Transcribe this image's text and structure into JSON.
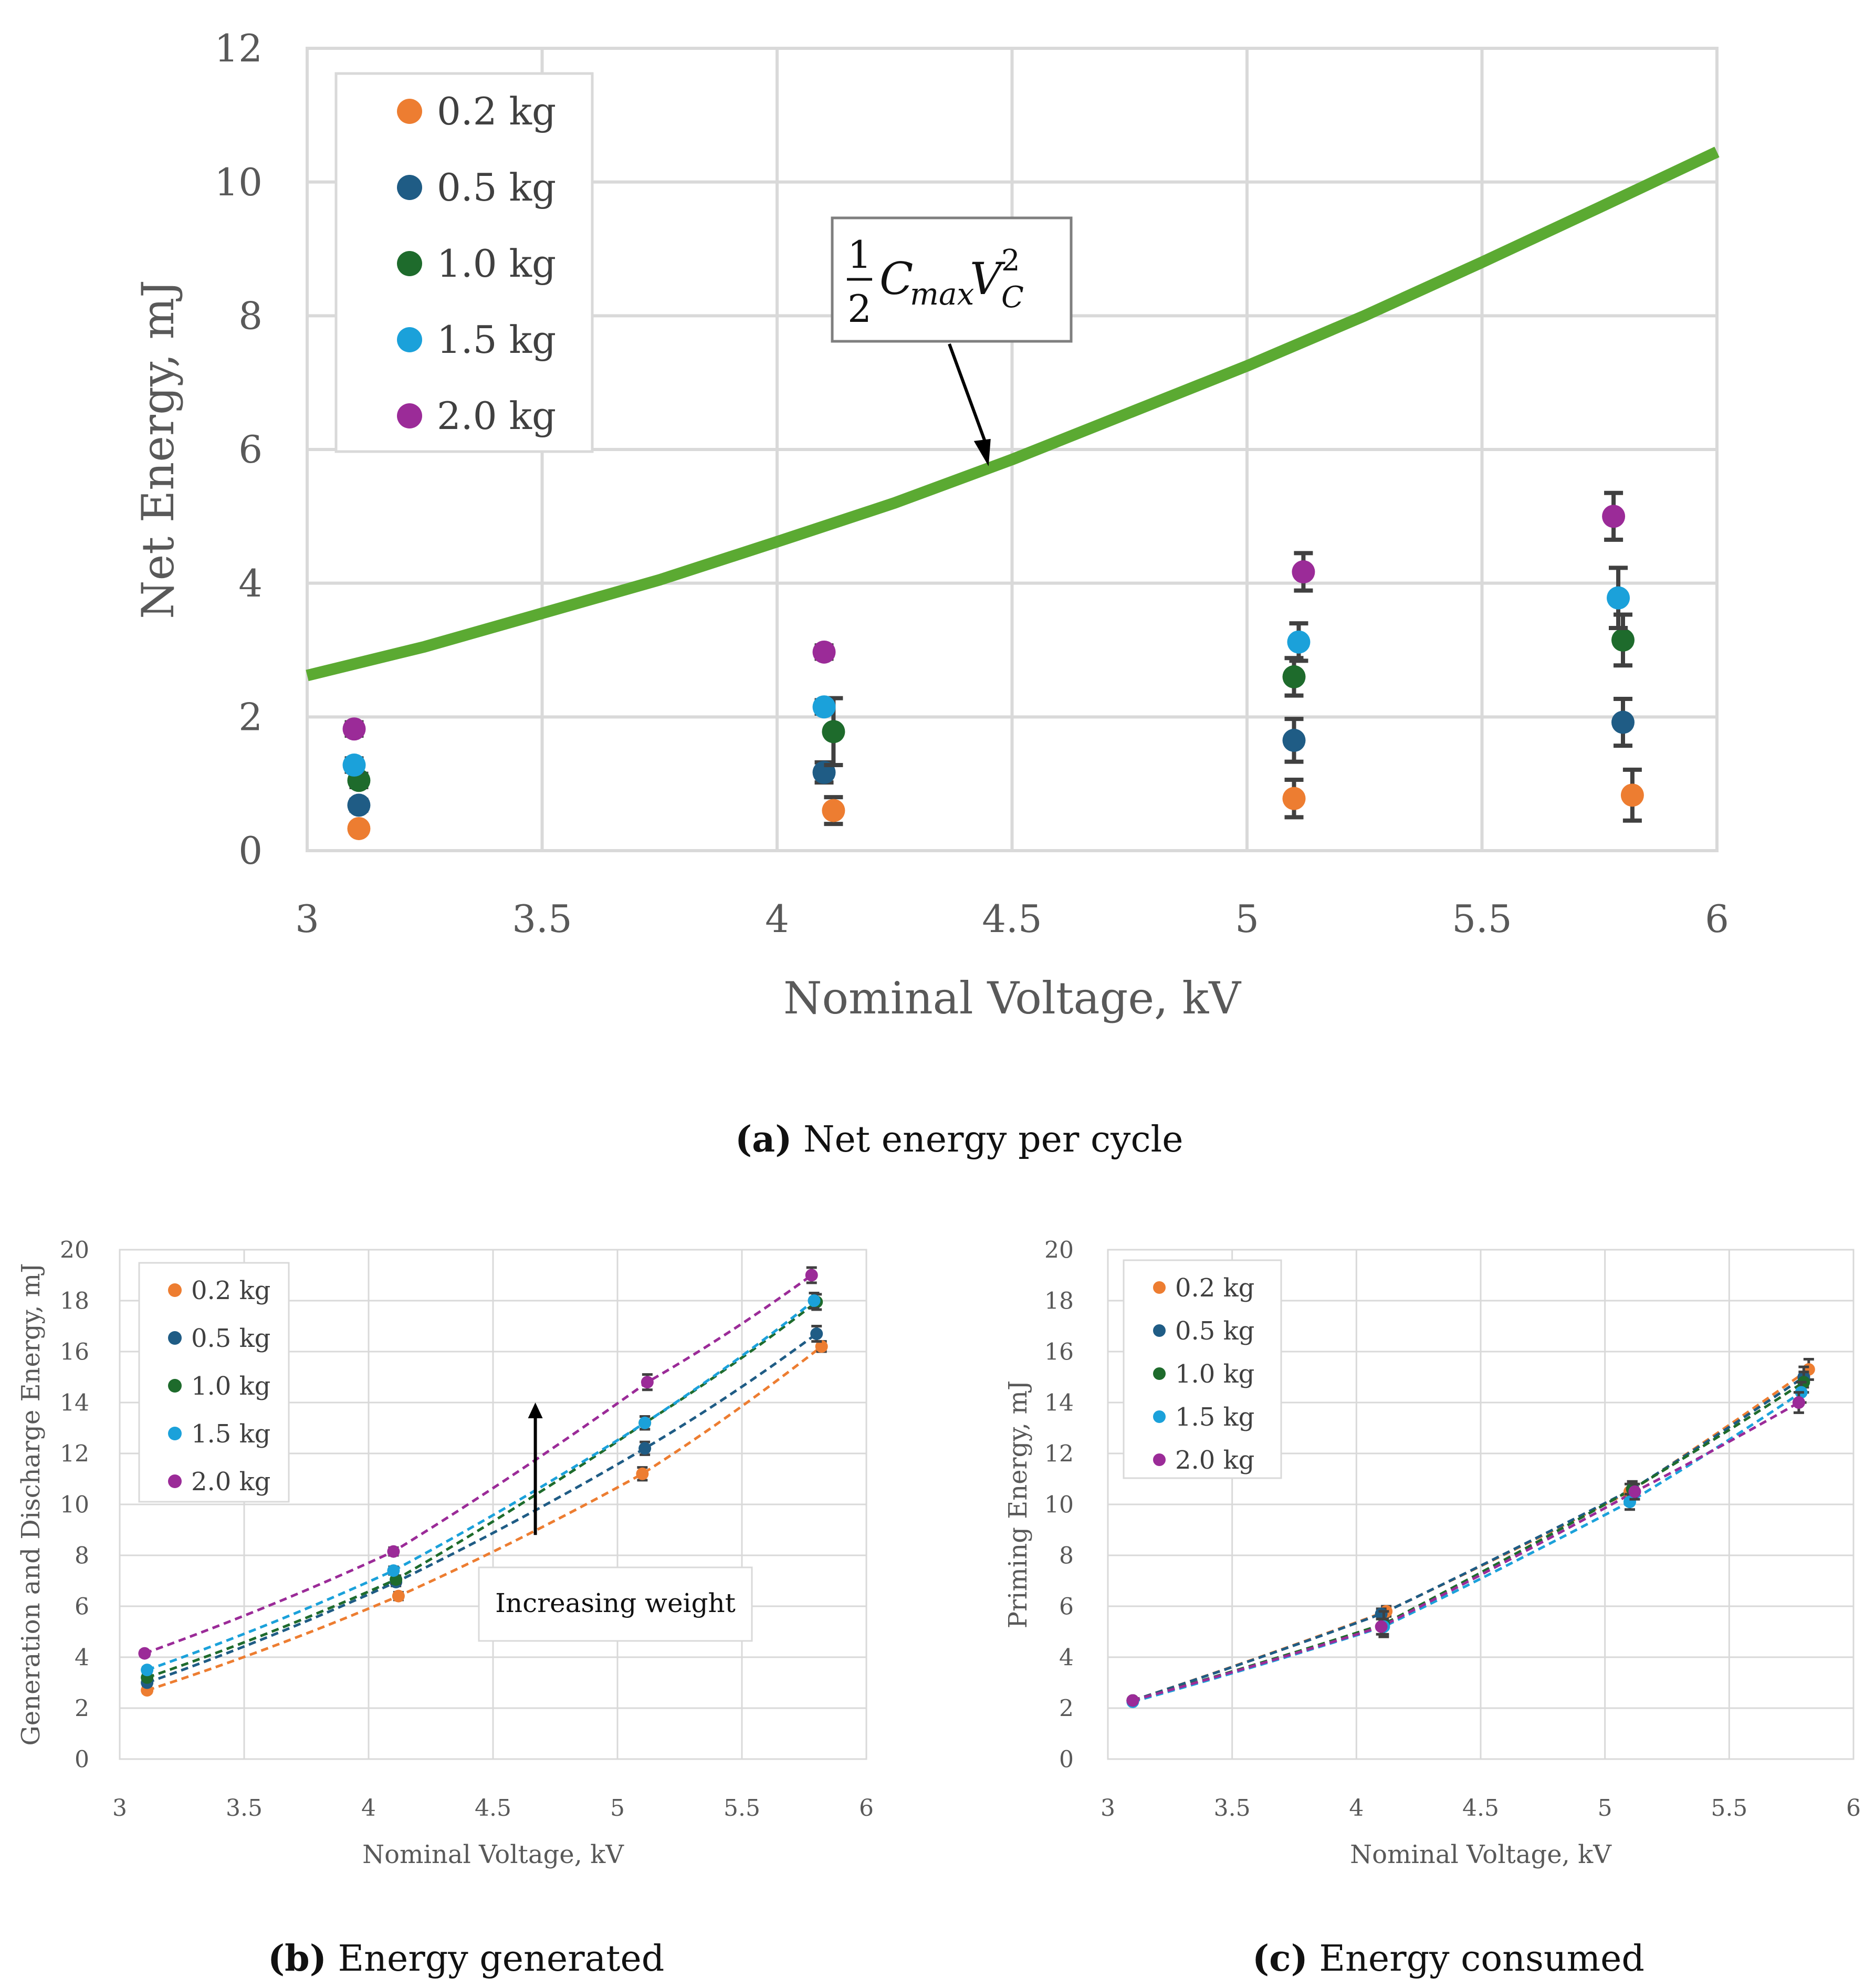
{
  "colors": {
    "0.2 kg": "#ED7D31",
    "0.5 kg": "#1F5C85",
    "1.0 kg": "#1E6B2C",
    "1.5 kg": "#1BA1DA",
    "2.0 kg": "#9B2B98",
    "theory": "#5BAA32",
    "grid": "#D9D9D9",
    "errorbar": "#404040"
  },
  "captions": {
    "a_label": "(a)",
    "a_text": "Net energy per cycle",
    "b_label": "(b)",
    "b_text": "Energy generated",
    "c_label": "(c)",
    "c_text": "Energy consumed"
  },
  "chart_data": [
    {
      "id": "a",
      "type": "scatter",
      "title": "Net energy per cycle",
      "xlabel": "Nominal Voltage, kV",
      "ylabel": "Net Energy, mJ",
      "xlim": [
        3,
        6
      ],
      "ylim": [
        0,
        12
      ],
      "xticks": [
        "3",
        "3.5",
        "4",
        "4.5",
        "5",
        "5.5",
        "6"
      ],
      "yticks": [
        "0",
        "2",
        "4",
        "6",
        "8",
        "10",
        "12"
      ],
      "grid": true,
      "legend": "top-left",
      "annotation": {
        "text": "½ C_max V_C²",
        "points_to": [
          4.45,
          5.75
        ]
      },
      "theory_curve": {
        "name": "1/2 Cmax Vc^2",
        "x": [
          3.0,
          3.25,
          3.5,
          3.75,
          4.0,
          4.25,
          4.5,
          4.75,
          5.0,
          5.25,
          5.5,
          5.75,
          6.0
        ],
        "y": [
          2.62,
          3.05,
          3.55,
          4.05,
          4.62,
          5.2,
          5.85,
          6.55,
          7.25,
          8.0,
          8.8,
          9.62,
          10.45
        ]
      },
      "series": [
        {
          "name": "0.2 kg",
          "x": [
            3.11,
            4.12,
            5.1,
            5.82
          ],
          "y": [
            0.33,
            0.6,
            0.78,
            0.83
          ],
          "err": [
            0.05,
            0.2,
            0.28,
            0.38
          ]
        },
        {
          "name": "0.5 kg",
          "x": [
            3.11,
            4.1,
            5.1,
            5.8
          ],
          "y": [
            0.68,
            1.17,
            1.65,
            1.92
          ],
          "err": [
            0.08,
            0.15,
            0.32,
            0.35
          ]
        },
        {
          "name": "1.0 kg",
          "x": [
            3.11,
            4.12,
            5.1,
            5.8
          ],
          "y": [
            1.05,
            1.78,
            2.6,
            3.15
          ],
          "err": [
            0.1,
            0.5,
            0.28,
            0.38
          ]
        },
        {
          "name": "1.5 kg",
          "x": [
            3.1,
            4.1,
            5.11,
            5.79
          ],
          "y": [
            1.28,
            2.15,
            3.12,
            3.78
          ],
          "err": [
            0.1,
            0.1,
            0.28,
            0.45
          ]
        },
        {
          "name": "2.0 kg",
          "x": [
            3.1,
            4.1,
            5.12,
            5.78
          ],
          "y": [
            1.82,
            2.97,
            4.17,
            5.0
          ],
          "err": [
            0.1,
            0.1,
            0.28,
            0.35
          ]
        }
      ]
    },
    {
      "id": "b",
      "type": "scatter",
      "title": "Energy generated",
      "xlabel": "Nominal Voltage, kV",
      "ylabel": "Generation and Discharge Energy, mJ",
      "xlim": [
        3,
        6
      ],
      "ylim": [
        0,
        20
      ],
      "xticks": [
        "3",
        "3.5",
        "4",
        "4.5",
        "5",
        "5.5",
        "6"
      ],
      "yticks": [
        "0",
        "2",
        "4",
        "6",
        "8",
        "10",
        "12",
        "14",
        "16",
        "18",
        "20"
      ],
      "grid": true,
      "legend": "top-left",
      "annotation": {
        "text": "Increasing weight",
        "arrow_from": [
          4.67,
          8.8
        ],
        "arrow_to": [
          4.67,
          14.0
        ]
      },
      "series": [
        {
          "name": "0.2 kg",
          "x": [
            3.11,
            4.12,
            5.1,
            5.82
          ],
          "y": [
            2.7,
            6.4,
            11.2,
            16.2
          ],
          "err": [
            0.1,
            0.15,
            0.25,
            0.2
          ]
        },
        {
          "name": "0.5 kg",
          "x": [
            3.11,
            4.11,
            5.11,
            5.8
          ],
          "y": [
            3.0,
            6.95,
            12.2,
            16.7
          ],
          "err": [
            0.1,
            0.15,
            0.25,
            0.3
          ]
        },
        {
          "name": "1.0 kg",
          "x": [
            3.11,
            4.11,
            5.11,
            5.8
          ],
          "y": [
            3.2,
            7.05,
            13.2,
            17.95
          ],
          "err": [
            0.1,
            0.15,
            0.25,
            0.3
          ]
        },
        {
          "name": "1.5 kg",
          "x": [
            3.11,
            4.1,
            5.11,
            5.79
          ],
          "y": [
            3.5,
            7.4,
            13.2,
            18.0
          ],
          "err": [
            0.1,
            0.15,
            0.25,
            0.3
          ]
        },
        {
          "name": "2.0 kg",
          "x": [
            3.1,
            4.1,
            5.12,
            5.78
          ],
          "y": [
            4.15,
            8.15,
            14.8,
            19.0
          ],
          "err": [
            0.1,
            0.15,
            0.3,
            0.3
          ]
        }
      ]
    },
    {
      "id": "c",
      "type": "scatter",
      "title": "Energy consumed",
      "xlabel": "Nominal Voltage, kV",
      "ylabel": "Priming Energy, mJ",
      "xlim": [
        3,
        6
      ],
      "ylim": [
        0,
        20
      ],
      "xticks": [
        "3",
        "3.5",
        "4",
        "4.5",
        "5",
        "5.5",
        "6"
      ],
      "yticks": [
        "0",
        "2",
        "4",
        "6",
        "8",
        "10",
        "12",
        "14",
        "16",
        "18",
        "20"
      ],
      "grid": true,
      "legend": "top-left",
      "series": [
        {
          "name": "0.2 kg",
          "x": [
            3.1,
            4.12,
            5.1,
            5.82
          ],
          "y": [
            2.3,
            5.8,
            10.5,
            15.3
          ],
          "err": [
            0.05,
            0.2,
            0.3,
            0.4
          ]
        },
        {
          "name": "0.5 kg",
          "x": [
            3.1,
            4.1,
            5.11,
            5.8
          ],
          "y": [
            2.3,
            5.7,
            10.6,
            15.0
          ],
          "err": [
            0.05,
            0.2,
            0.3,
            0.4
          ]
        },
        {
          "name": "1.0 kg",
          "x": [
            3.1,
            4.11,
            5.11,
            5.8
          ],
          "y": [
            2.3,
            5.3,
            10.6,
            14.8
          ],
          "err": [
            0.05,
            0.5,
            0.3,
            0.4
          ]
        },
        {
          "name": "1.5 kg",
          "x": [
            3.1,
            4.11,
            5.1,
            5.79
          ],
          "y": [
            2.25,
            5.2,
            10.1,
            14.4
          ],
          "err": [
            0.05,
            0.3,
            0.3,
            0.4
          ]
        },
        {
          "name": "2.0 kg",
          "x": [
            3.1,
            4.1,
            5.12,
            5.78
          ],
          "y": [
            2.3,
            5.2,
            10.5,
            14.0
          ],
          "err": [
            0.05,
            0.3,
            0.3,
            0.4
          ]
        }
      ]
    }
  ]
}
